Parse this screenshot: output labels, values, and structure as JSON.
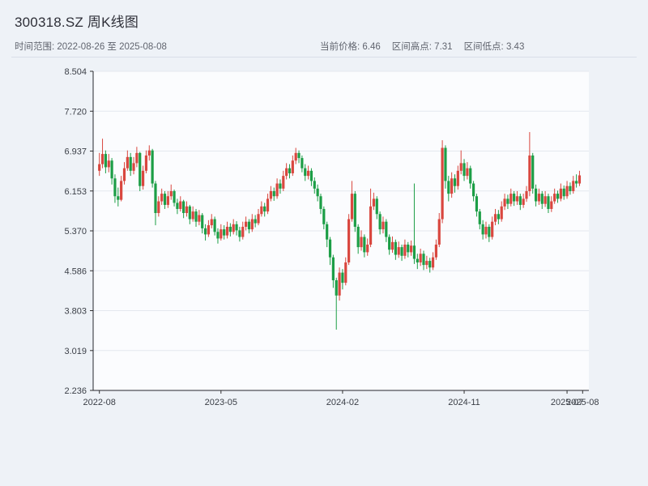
{
  "header": {
    "title": "300318.SZ 周K线图",
    "time_range": "时间范围: 2022-08-26 至 2025-08-08",
    "stats": {
      "current": "当前价格: 6.46",
      "high": "区间高点: 7.31",
      "low": "区间低点: 3.43"
    }
  },
  "chart_data": {
    "type": "candlestick",
    "title": "300318.SZ 周K线图",
    "symbol": "300318.SZ",
    "interval": "weekly",
    "start_date": "2022-08-26",
    "end_date": "2025-08-08",
    "current_price": 6.46,
    "range_high": 7.31,
    "range_low": 3.43,
    "grid": true,
    "legend": "none",
    "up_color": "#d9473f",
    "down_color": "#1c9e46",
    "ylim": [
      2.236,
      8.504
    ],
    "y_ticks": [
      "8.504",
      "7.720",
      "6.937",
      "6.153",
      "5.370",
      "4.586",
      "3.803",
      "3.019",
      "2.236"
    ],
    "xlim": [
      -2,
      157
    ],
    "x_ticks": [
      {
        "label": "2022-08",
        "week": 0
      },
      {
        "label": "2023-05",
        "week": 39
      },
      {
        "label": "2024-02",
        "week": 78
      },
      {
        "label": "2024-11",
        "week": 117
      },
      {
        "label": "2025-07",
        "week": 150
      },
      {
        "label": "2025-08",
        "week": 155
      }
    ],
    "ohlc_format": [
      "open",
      "high",
      "low",
      "close"
    ],
    "candles_ohlc": [
      [
        6.55,
        6.9,
        6.45,
        6.68
      ],
      [
        6.68,
        7.18,
        6.6,
        6.88
      ],
      [
        6.88,
        6.95,
        6.5,
        6.62
      ],
      [
        6.62,
        6.88,
        6.52,
        6.75
      ],
      [
        6.75,
        6.8,
        6.28,
        6.4
      ],
      [
        6.4,
        6.48,
        5.92,
        6.05
      ],
      [
        6.05,
        6.22,
        5.85,
        5.98
      ],
      [
        5.98,
        6.45,
        5.95,
        6.35
      ],
      [
        6.35,
        6.72,
        6.28,
        6.6
      ],
      [
        6.6,
        6.95,
        6.55,
        6.82
      ],
      [
        6.82,
        6.9,
        6.45,
        6.55
      ],
      [
        6.55,
        6.82,
        6.48,
        6.7
      ],
      [
        6.7,
        7.02,
        6.62,
        6.9
      ],
      [
        6.9,
        6.92,
        6.15,
        6.25
      ],
      [
        6.25,
        6.65,
        6.18,
        6.55
      ],
      [
        6.55,
        6.95,
        6.5,
        6.85
      ],
      [
        6.85,
        7.05,
        6.75,
        6.95
      ],
      [
        6.95,
        6.98,
        6.22,
        6.3
      ],
      [
        6.3,
        6.35,
        5.48,
        5.72
      ],
      [
        5.72,
        6.05,
        5.65,
        5.95
      ],
      [
        5.95,
        6.2,
        5.88,
        6.1
      ],
      [
        6.1,
        6.15,
        5.8,
        5.88
      ],
      [
        5.88,
        6.15,
        5.82,
        6.05
      ],
      [
        6.05,
        6.28,
        5.98,
        6.15
      ],
      [
        6.15,
        6.18,
        5.85,
        5.92
      ],
      [
        5.92,
        6.0,
        5.7,
        5.8
      ],
      [
        5.8,
        6.05,
        5.75,
        5.95
      ],
      [
        5.95,
        5.98,
        5.62,
        5.72
      ],
      [
        5.72,
        5.95,
        5.65,
        5.85
      ],
      [
        5.85,
        5.88,
        5.5,
        5.6
      ],
      [
        5.6,
        5.85,
        5.55,
        5.75
      ],
      [
        5.75,
        5.8,
        5.45,
        5.55
      ],
      [
        5.55,
        5.78,
        5.48,
        5.68
      ],
      [
        5.68,
        5.72,
        5.32,
        5.42
      ],
      [
        5.42,
        5.5,
        5.18,
        5.3
      ],
      [
        5.3,
        5.58,
        5.25,
        5.48
      ],
      [
        5.48,
        5.7,
        5.42,
        5.6
      ],
      [
        5.6,
        5.65,
        5.28,
        5.35
      ],
      [
        5.35,
        5.42,
        5.12,
        5.22
      ],
      [
        5.22,
        5.5,
        5.18,
        5.4
      ],
      [
        5.4,
        5.48,
        5.2,
        5.28
      ],
      [
        5.28,
        5.55,
        5.22,
        5.45
      ],
      [
        5.45,
        5.52,
        5.26,
        5.35
      ],
      [
        5.35,
        5.6,
        5.3,
        5.5
      ],
      [
        5.5,
        5.56,
        5.28,
        5.38
      ],
      [
        5.38,
        5.45,
        5.16,
        5.25
      ],
      [
        5.25,
        5.55,
        5.2,
        5.45
      ],
      [
        5.45,
        5.65,
        5.38,
        5.55
      ],
      [
        5.55,
        5.6,
        5.32,
        5.4
      ],
      [
        5.4,
        5.7,
        5.35,
        5.6
      ],
      [
        5.6,
        5.68,
        5.44,
        5.52
      ],
      [
        5.52,
        5.8,
        5.48,
        5.7
      ],
      [
        5.7,
        5.95,
        5.65,
        5.85
      ],
      [
        5.85,
        5.92,
        5.65,
        5.75
      ],
      [
        5.75,
        6.1,
        5.7,
        6.0
      ],
      [
        6.0,
        6.25,
        5.95,
        6.15
      ],
      [
        6.15,
        6.22,
        5.96,
        6.05
      ],
      [
        6.05,
        6.4,
        6.0,
        6.3
      ],
      [
        6.3,
        6.38,
        6.1,
        6.2
      ],
      [
        6.2,
        6.55,
        6.15,
        6.45
      ],
      [
        6.45,
        6.7,
        6.38,
        6.6
      ],
      [
        6.6,
        6.68,
        6.4,
        6.5
      ],
      [
        6.5,
        6.85,
        6.45,
        6.75
      ],
      [
        6.75,
        7.0,
        6.68,
        6.9
      ],
      [
        6.9,
        6.95,
        6.7,
        6.8
      ],
      [
        6.8,
        6.85,
        6.52,
        6.6
      ],
      [
        6.6,
        6.68,
        6.35,
        6.45
      ],
      [
        6.45,
        6.65,
        6.38,
        6.55
      ],
      [
        6.55,
        6.6,
        6.25,
        6.35
      ],
      [
        6.35,
        6.42,
        6.1,
        6.2
      ],
      [
        6.2,
        6.28,
        5.95,
        6.05
      ],
      [
        6.05,
        6.1,
        5.7,
        5.8
      ],
      [
        5.8,
        5.85,
        5.4,
        5.5
      ],
      [
        5.5,
        5.55,
        5.05,
        5.2
      ],
      [
        5.2,
        5.25,
        4.7,
        4.85
      ],
      [
        4.85,
        4.9,
        4.25,
        4.4
      ],
      [
        4.4,
        4.45,
        3.43,
        4.1
      ],
      [
        4.1,
        4.65,
        4.0,
        4.55
      ],
      [
        4.55,
        4.62,
        4.22,
        4.35
      ],
      [
        4.35,
        4.85,
        4.3,
        4.75
      ],
      [
        4.75,
        5.7,
        4.7,
        5.6
      ],
      [
        5.6,
        6.35,
        5.55,
        6.1
      ],
      [
        6.1,
        6.15,
        5.35,
        5.45
      ],
      [
        5.45,
        5.5,
        4.92,
        5.05
      ],
      [
        5.05,
        5.38,
        4.98,
        5.25
      ],
      [
        5.25,
        5.3,
        4.85,
        4.95
      ],
      [
        4.95,
        5.22,
        4.88,
        5.1
      ],
      [
        5.1,
        6.2,
        5.05,
        5.85
      ],
      [
        5.85,
        6.12,
        5.78,
        6.0
      ],
      [
        6.0,
        6.05,
        5.6,
        5.7
      ],
      [
        5.7,
        5.75,
        5.3,
        5.4
      ],
      [
        5.4,
        5.65,
        5.32,
        5.55
      ],
      [
        5.55,
        5.6,
        5.15,
        5.25
      ],
      [
        5.25,
        5.3,
        4.9,
        5.0
      ],
      [
        5.0,
        5.26,
        4.94,
        5.15
      ],
      [
        5.15,
        5.2,
        4.8,
        4.9
      ],
      [
        4.9,
        5.16,
        4.84,
        5.05
      ],
      [
        5.05,
        5.1,
        4.78,
        4.88
      ],
      [
        4.88,
        5.2,
        4.82,
        5.1
      ],
      [
        5.1,
        5.15,
        4.85,
        4.95
      ],
      [
        4.95,
        5.18,
        4.88,
        5.08
      ],
      [
        5.08,
        6.3,
        4.72,
        4.82
      ],
      [
        4.82,
        4.92,
        4.62,
        4.75
      ],
      [
        4.75,
        5.02,
        4.68,
        4.92
      ],
      [
        4.92,
        4.98,
        4.6,
        4.7
      ],
      [
        4.7,
        4.88,
        4.62,
        4.78
      ],
      [
        4.78,
        4.84,
        4.55,
        4.65
      ],
      [
        4.65,
        4.95,
        4.6,
        4.85
      ],
      [
        4.85,
        5.2,
        4.8,
        5.1
      ],
      [
        5.1,
        5.72,
        5.05,
        5.6
      ],
      [
        5.6,
        7.15,
        5.52,
        7.0
      ],
      [
        7.0,
        7.05,
        6.2,
        6.35
      ],
      [
        6.35,
        6.45,
        5.95,
        6.1
      ],
      [
        6.1,
        6.52,
        6.02,
        6.4
      ],
      [
        6.4,
        6.48,
        6.12,
        6.25
      ],
      [
        6.25,
        6.65,
        6.18,
        6.55
      ],
      [
        6.55,
        6.95,
        6.48,
        6.7
      ],
      [
        6.7,
        6.78,
        6.35,
        6.45
      ],
      [
        6.45,
        6.72,
        6.38,
        6.6
      ],
      [
        6.6,
        6.65,
        6.2,
        6.3
      ],
      [
        6.3,
        6.35,
        5.95,
        6.05
      ],
      [
        6.05,
        6.1,
        5.65,
        5.75
      ],
      [
        5.75,
        5.8,
        5.4,
        5.5
      ],
      [
        5.5,
        5.58,
        5.2,
        5.3
      ],
      [
        5.3,
        5.55,
        5.22,
        5.45
      ],
      [
        5.45,
        5.5,
        5.15,
        5.25
      ],
      [
        5.25,
        5.65,
        5.2,
        5.55
      ],
      [
        5.55,
        5.8,
        5.48,
        5.7
      ],
      [
        5.7,
        5.78,
        5.5,
        5.6
      ],
      [
        5.6,
        5.95,
        5.55,
        5.85
      ],
      [
        5.85,
        6.1,
        5.78,
        6.0
      ],
      [
        6.0,
        6.08,
        5.8,
        5.9
      ],
      [
        5.9,
        6.2,
        5.85,
        6.1
      ],
      [
        6.1,
        6.15,
        5.86,
        5.95
      ],
      [
        5.95,
        6.15,
        5.88,
        6.05
      ],
      [
        6.05,
        6.1,
        5.78,
        5.88
      ],
      [
        5.88,
        6.1,
        5.82,
        6.0
      ],
      [
        6.0,
        6.25,
        5.94,
        6.15
      ],
      [
        6.15,
        7.31,
        6.05,
        6.85
      ],
      [
        6.85,
        6.9,
        6.1,
        6.2
      ],
      [
        6.2,
        6.28,
        5.85,
        5.95
      ],
      [
        5.95,
        6.2,
        5.88,
        6.1
      ],
      [
        6.1,
        6.15,
        5.8,
        5.9
      ],
      [
        5.9,
        6.15,
        5.84,
        6.05
      ],
      [
        6.05,
        6.1,
        5.72,
        5.8
      ],
      [
        5.8,
        6.05,
        5.74,
        5.95
      ],
      [
        5.95,
        6.2,
        5.9,
        6.1
      ],
      [
        6.1,
        6.16,
        5.92,
        6.0
      ],
      [
        6.0,
        6.3,
        5.95,
        6.2
      ],
      [
        6.2,
        6.26,
        5.98,
        6.05
      ],
      [
        6.05,
        6.35,
        6.0,
        6.25
      ],
      [
        6.25,
        6.32,
        6.08,
        6.15
      ],
      [
        6.15,
        6.45,
        6.1,
        6.35
      ],
      [
        6.35,
        6.48,
        6.22,
        6.3
      ],
      [
        6.3,
        6.55,
        6.25,
        6.46
      ]
    ]
  }
}
